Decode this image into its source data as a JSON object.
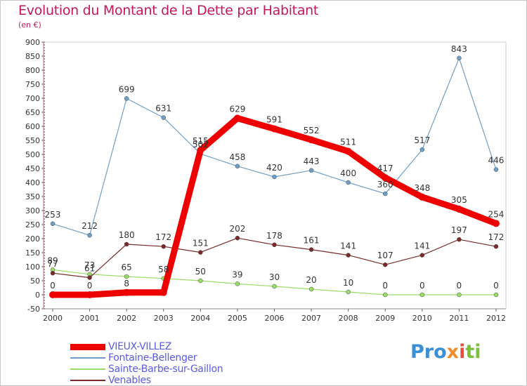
{
  "chart_data": {
    "type": "line",
    "title": "Evolution du Montant de la Dette par Habitant",
    "subtitle": "(en €)",
    "x": [
      "2000",
      "2001",
      "2002",
      "2003",
      "2004",
      "2005",
      "2006",
      "2007",
      "2008",
      "2009",
      "2010",
      "2011",
      "2012"
    ],
    "yticks": [
      -50,
      0,
      50,
      100,
      150,
      200,
      250,
      300,
      350,
      400,
      450,
      500,
      550,
      600,
      650,
      700,
      750,
      800,
      850,
      900
    ],
    "ylim": [
      -50,
      900
    ],
    "grid": false,
    "legend_position": "bottom-left",
    "series": [
      {
        "name": "VIEUX-VILLEZ",
        "color": "#ee0000",
        "values": [
          0,
          0,
          8,
          8,
          515,
          629,
          591,
          552,
          511,
          417,
          348,
          305,
          254
        ],
        "labels": [
          "0",
          "0",
          "8",
          "",
          "515",
          "629",
          "591",
          "552",
          "511",
          "417",
          "348",
          "305",
          "254"
        ]
      },
      {
        "name": "Fontaine-Bellenger",
        "color": "#6f9fc6",
        "values": [
          253,
          212,
          699,
          631,
          502,
          458,
          420,
          443,
          400,
          360,
          517,
          843,
          446
        ],
        "labels": [
          "253",
          "212",
          "699",
          "631",
          "502",
          "458",
          "420",
          "443",
          "400",
          "360",
          "517",
          "843",
          "446"
        ]
      },
      {
        "name": "Sainte-Barbe-sur-Gaillon",
        "color": "#99dd66",
        "values": [
          89,
          73,
          65,
          58,
          50,
          39,
          30,
          20,
          10,
          0,
          0,
          0,
          0
        ],
        "labels": [
          "89",
          "73",
          "65",
          "58",
          "50",
          "39",
          "30",
          "20",
          "10",
          "0",
          "0",
          "0",
          "0"
        ]
      },
      {
        "name": "Venables",
        "color": "#7a2a2a",
        "values": [
          77,
          61,
          180,
          172,
          151,
          202,
          178,
          161,
          141,
          107,
          141,
          197,
          172
        ],
        "labels": [
          "77",
          "61",
          "180",
          "172",
          "151",
          "202",
          "178",
          "161",
          "141",
          "107",
          "141",
          "197",
          "172"
        ]
      }
    ]
  },
  "legend": {
    "items": [
      "VIEUX-VILLEZ",
      "Fontaine-Bellenger",
      "Sainte-Barbe-sur-Gaillon",
      "Venables"
    ]
  },
  "logo": {
    "part1": "Pro",
    "part2": "x",
    "part3": "i",
    "part4": "ti"
  }
}
